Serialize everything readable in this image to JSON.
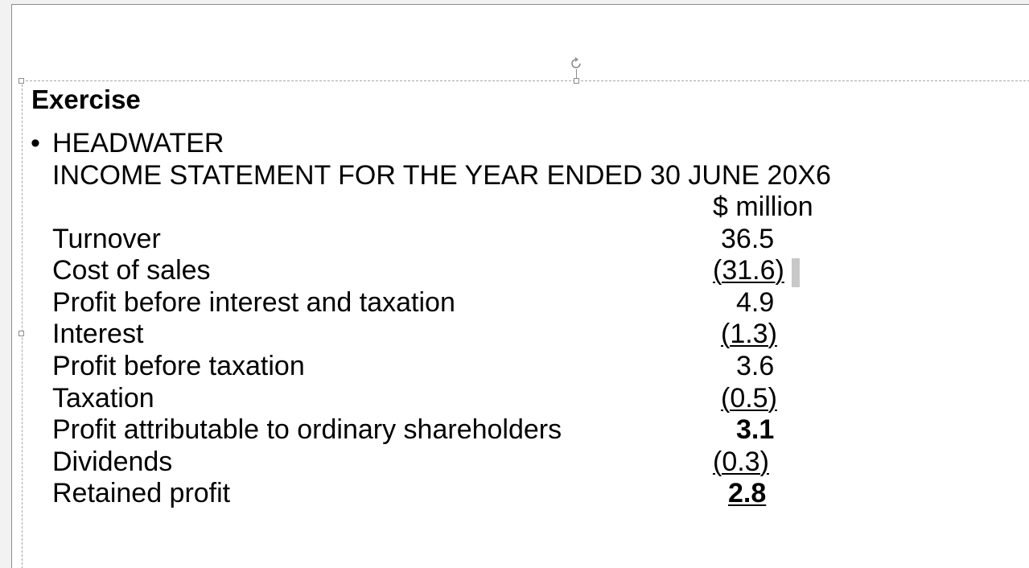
{
  "slide": {
    "heading": "Exercise",
    "bullet_glyph": "•",
    "company": "HEADWATER",
    "statement_title": "INCOME STATEMENT FOR THE YEAR ENDED 30 JUNE 20X6",
    "unit_header": "$ million",
    "rows": [
      {
        "label": "Turnover",
        "value": "36.5"
      },
      {
        "label": "Cost of sales",
        "value": "(31.6)"
      },
      {
        "label": "Profit before interest and taxation",
        "value": "4.9"
      },
      {
        "label": "Interest",
        "value": "(1.3)"
      },
      {
        "label": "Profit before taxation",
        "value": "3.6"
      },
      {
        "label": "Taxation",
        "value": "(0.5)"
      },
      {
        "label": "Profit attributable to ordinary shareholders",
        "value": "3.1"
      },
      {
        "label": "Dividends",
        "value": "(0.3)"
      },
      {
        "label": "Retained profit",
        "value": "2.8"
      }
    ]
  },
  "icons": {
    "rotate_handle": "rotate-icon"
  }
}
